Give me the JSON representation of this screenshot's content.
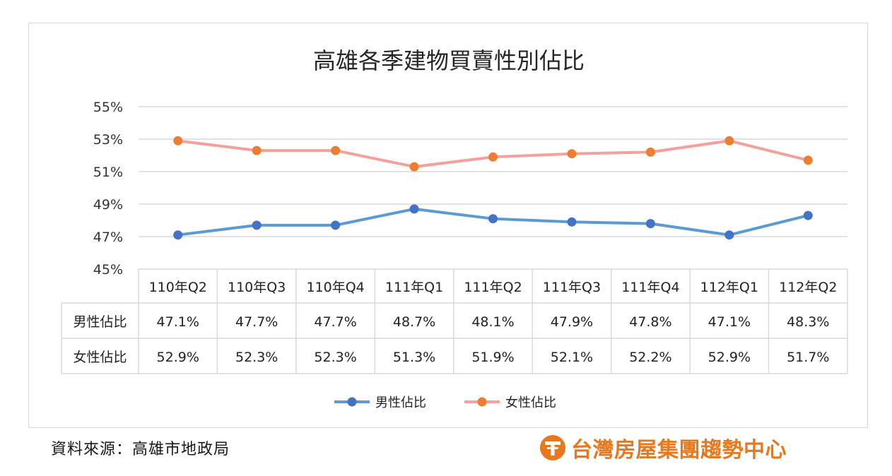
{
  "chart_data": {
    "type": "line",
    "title": "高雄各季建物買賣性別佔比",
    "categories": [
      "110年Q2",
      "110年Q3",
      "110年Q4",
      "111年Q1",
      "111年Q2",
      "111年Q3",
      "111年Q4",
      "112年Q1",
      "112年Q2"
    ],
    "series": [
      {
        "name": "男性佔比",
        "color": "#5b9bd5",
        "marker_color": "#4472c4",
        "values": [
          47.1,
          47.7,
          47.7,
          48.7,
          48.1,
          47.9,
          47.8,
          47.1,
          48.3
        ],
        "labels": [
          "47.1%",
          "47.7%",
          "47.7%",
          "48.7%",
          "48.1%",
          "47.9%",
          "47.8%",
          "47.1%",
          "48.3%"
        ]
      },
      {
        "name": "女性佔比",
        "color": "#f4a09b",
        "marker_color": "#ed7d31",
        "values": [
          52.9,
          52.3,
          52.3,
          51.3,
          51.9,
          52.1,
          52.2,
          52.9,
          51.7
        ],
        "labels": [
          "52.9%",
          "52.3%",
          "52.3%",
          "51.3%",
          "51.9%",
          "52.1%",
          "52.2%",
          "52.9%",
          "51.7%"
        ]
      }
    ],
    "ylim": [
      45,
      55
    ],
    "yticks": [
      "55%",
      "53%",
      "51%",
      "49%",
      "47%",
      "45%"
    ],
    "ytick_values": [
      55,
      53,
      51,
      49,
      47,
      45
    ],
    "grid": true,
    "legend_position": "bottom",
    "data_table": true
  },
  "footer": {
    "source": "資料來源：高雄市地政局",
    "brand": "台灣房屋集團趨勢中心",
    "brand_color": "#e8781e"
  }
}
